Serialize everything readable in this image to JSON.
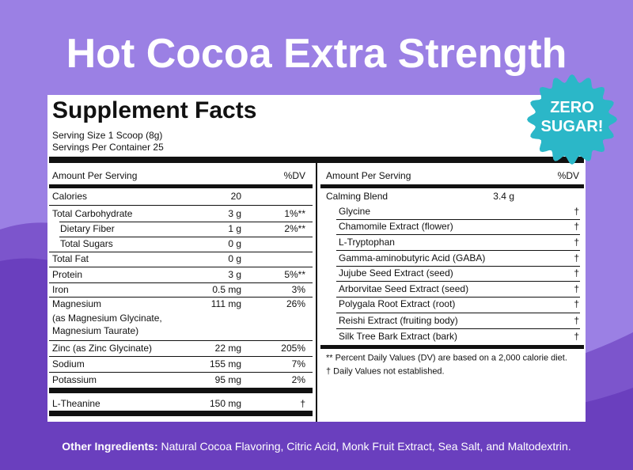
{
  "title": "Hot Cocoa Extra Strength",
  "badge": [
    "ZERO",
    "SUGAR!"
  ],
  "panel": {
    "heading": "Supplement Facts",
    "serving_size": "Serving Size 1 Scoop (8g)",
    "servings_per_container": "Servings Per Container 25",
    "left": {
      "header": {
        "amount": "Amount Per Serving",
        "dv": "%DV"
      },
      "rows": [
        {
          "name": "Calories",
          "amount": "20"
        },
        {
          "name": "Total Carbohydrate",
          "amount": "3 g",
          "dv": "1%**"
        },
        {
          "name": "Dietary Fiber",
          "amount": "1 g",
          "dv": "2%**"
        },
        {
          "name": "Total Sugars",
          "amount": "0 g"
        },
        {
          "name": "Total Fat",
          "amount": "0 g"
        },
        {
          "name": "Protein",
          "amount": "3 g",
          "dv": "5%**"
        },
        {
          "name": "Iron",
          "amount": "0.5 mg",
          "dv": "3%"
        },
        {
          "name": "Magnesium",
          "amount": "111 mg",
          "dv": "26%",
          "note": [
            "(as Magnesium Glycinate,",
            "Magnesium Taurate)"
          ]
        },
        {
          "name": "Zinc (as Zinc Glycinate)",
          "amount": "22 mg",
          "dv": "205%"
        },
        {
          "name": "Sodium",
          "amount": "155 mg",
          "dv": "7%"
        },
        {
          "name": "Potassium",
          "amount": "95 mg",
          "dv": "2%"
        }
      ],
      "final_row": {
        "name": "L-Theanine",
        "amount": "150 mg",
        "dv": "†"
      }
    },
    "right": {
      "header": {
        "amount": "Amount Per Serving",
        "dv": "%DV"
      },
      "blend": {
        "name": "Calming Blend",
        "amount": "3.4 g"
      },
      "items": [
        {
          "name": "Glycine",
          "dv": "†"
        },
        {
          "name": "Chamomile Extract (flower)",
          "dv": "†"
        },
        {
          "name": "L-Tryptophan",
          "dv": "†"
        },
        {
          "name": "Gamma-aminobutyric Acid (GABA)",
          "dv": "†"
        },
        {
          "name": "Jujube Seed Extract (seed)",
          "dv": "†"
        },
        {
          "name": "Arborvitae Seed Extract (seed)",
          "dv": "†"
        },
        {
          "name": "Polygala Root Extract (root)",
          "dv": "†"
        },
        {
          "name": "Reishi Extract (fruiting body)",
          "dv": "†"
        },
        {
          "name": "Silk Tree Bark Extract (bark)",
          "dv": "†"
        }
      ],
      "footnotes": [
        "** Percent Daily Values (DV) are based on a 2,000 calorie diet.",
        "† Daily Values not established."
      ]
    }
  },
  "other_ingredients": {
    "label": "Other Ingredients:",
    "text": "Natural Cocoa Flavoring, Citric Acid, Monk Fruit Extract, Sea Salt, and Maltodextrin."
  }
}
